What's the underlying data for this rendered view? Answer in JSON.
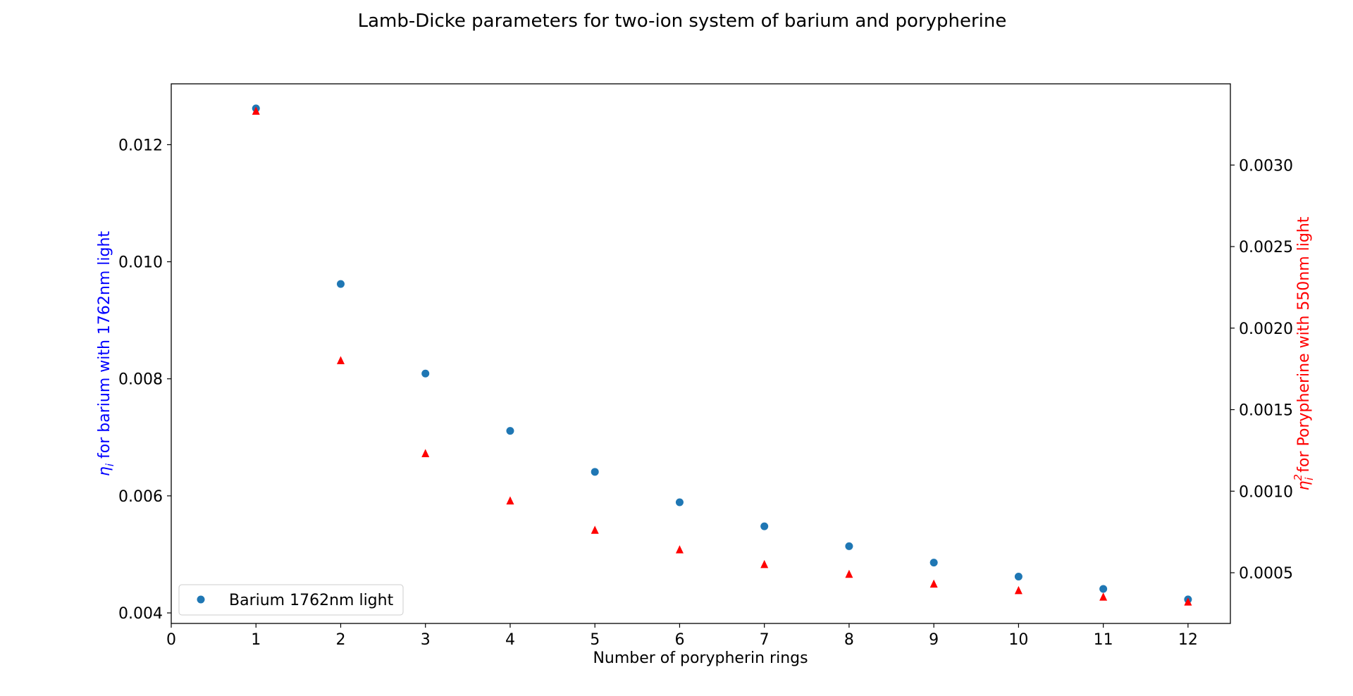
{
  "chart_data": {
    "type": "scatter",
    "title": "Lamb-Dicke parameters for two-ion system of barium and porypherine",
    "xlabel": "Number of porypherin rings",
    "ylabel_left": {
      "symbol": "η",
      "subscript": "i",
      "text": " for barium with 1762nm light",
      "color": "#0000ff"
    },
    "ylabel_right": {
      "symbol": "η",
      "subscript": "i",
      "superscript": "2",
      "text": " for Porypherine with 550nm light",
      "color": "#ff0000"
    },
    "xlim": [
      0,
      12.5
    ],
    "ylim_left": [
      0.00382,
      0.01304
    ],
    "ylim_right": [
      0.000189,
      0.003498
    ],
    "x_ticks": [
      0,
      1,
      2,
      3,
      4,
      5,
      6,
      7,
      8,
      9,
      10,
      11,
      12
    ],
    "x_tick_labels": [
      "0",
      "1",
      "2",
      "3",
      "4",
      "5",
      "6",
      "7",
      "8",
      "9",
      "10",
      "11",
      "12"
    ],
    "y_left_ticks": [
      0.004,
      0.006,
      0.008,
      0.01,
      0.012
    ],
    "y_left_tick_labels": [
      "0.004",
      "0.006",
      "0.008",
      "0.010",
      "0.012"
    ],
    "y_right_ticks": [
      0.0005,
      0.001,
      0.0015,
      0.002,
      0.0025,
      0.003
    ],
    "y_right_tick_labels": [
      "0.0005",
      "0.0010",
      "0.0015",
      "0.0020",
      "0.0025",
      "0.0030"
    ],
    "grid": false,
    "legend_position": "lower-left",
    "series": [
      {
        "name": "Barium 1762nm light",
        "axis": "left",
        "marker": "circle",
        "color": "#1f77b4",
        "x": [
          1,
          2,
          3,
          4,
          5,
          6,
          7,
          8,
          9,
          10,
          11,
          12
        ],
        "y": [
          0.01262,
          0.00962,
          0.00809,
          0.00711,
          0.00641,
          0.00589,
          0.00548,
          0.00514,
          0.00486,
          0.00462,
          0.00441,
          0.00423
        ]
      },
      {
        "axis": "right",
        "marker": "triangle",
        "color": "#ff0000",
        "x": [
          1,
          2,
          3,
          4,
          5,
          6,
          7,
          8,
          9,
          10,
          11,
          12
        ],
        "y": [
          0.00333,
          0.0018,
          0.00123,
          0.00094,
          0.00076,
          0.00064,
          0.00055,
          0.00049,
          0.00043,
          0.00039,
          0.00035,
          0.00032
        ]
      }
    ]
  }
}
